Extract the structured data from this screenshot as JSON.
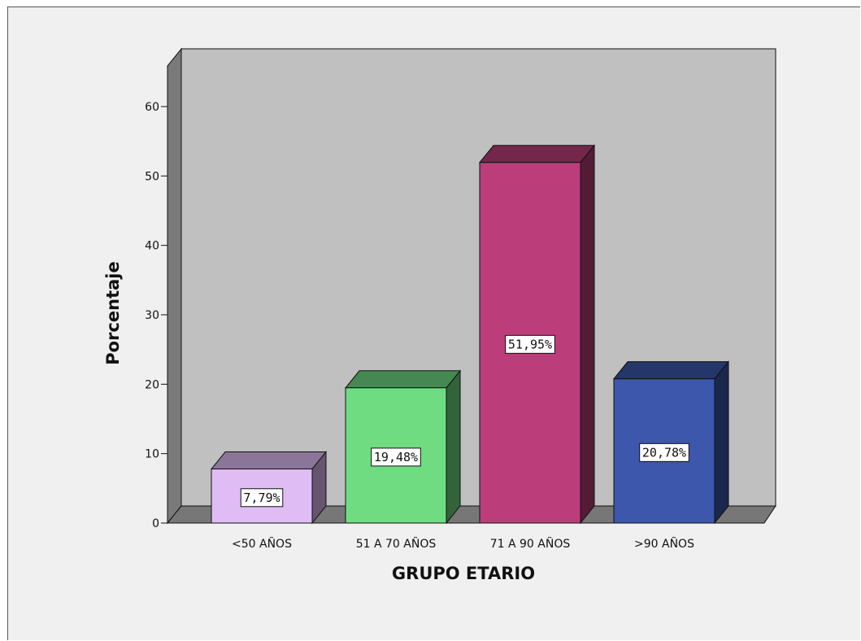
{
  "chart_data": {
    "type": "bar",
    "categories": [
      "<50 AÑOS",
      "51 A 70 AÑOS",
      "71 A 90 AÑOS",
      ">90 AÑOS"
    ],
    "values": [
      7.79,
      19.48,
      51.95,
      20.78
    ],
    "data_labels": [
      "7,79%",
      "19,48%",
      "51,95%",
      "20,78%"
    ],
    "xlabel": "GRUPO ETARIO",
    "ylabel": "Porcentaje",
    "ylim": [
      0,
      60
    ],
    "yticks": [
      "0",
      "10",
      "20",
      "30",
      "40",
      "50",
      "60"
    ],
    "grid": false,
    "three_d": true,
    "colors": {
      "bars": [
        "#e0bcf5",
        "#6fdc82",
        "#bb3d79",
        "#3c57ab"
      ],
      "panel_back": "#c0c0c0",
      "panel_side": "#7a7a7a",
      "floor": "#777777",
      "background": "#f0f0f0"
    }
  }
}
